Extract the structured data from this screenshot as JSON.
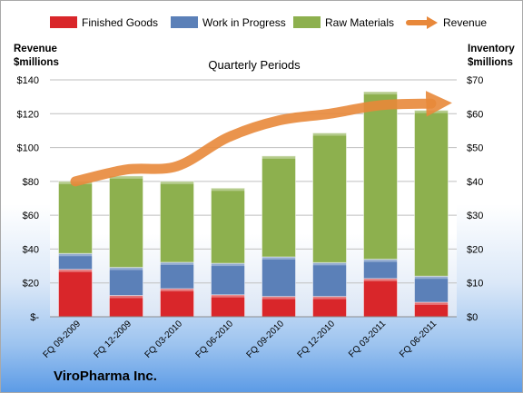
{
  "chart_data": {
    "type": "bar",
    "subtype": "stacked bar with line overlay",
    "title": "Quarterly Periods",
    "company": "ViroPharma Inc.",
    "left_axis_label": [
      "Revenue",
      "$millions"
    ],
    "right_axis_label": [
      "Inventory",
      "$millions"
    ],
    "categories": [
      "FQ 09-2009",
      "FQ 12-2009",
      "FQ 03-2010",
      "FQ 06-2010",
      "FQ 09-2010",
      "FQ 12-2010",
      "FQ 03-2011",
      "FQ 06-2011"
    ],
    "left_ticks": [
      "$-",
      "$20",
      "$40",
      "$60",
      "$80",
      "$100",
      "$120",
      "$140"
    ],
    "right_ticks": [
      "$0",
      "$10",
      "$20",
      "$30",
      "$40",
      "$50",
      "$60",
      "$70"
    ],
    "left_ylim": [
      0,
      140
    ],
    "right_ylim": [
      0,
      70
    ],
    "legend_position": "top",
    "series": [
      {
        "name": "Finished Goods",
        "axis": "right",
        "color": "#d9262a",
        "values": [
          14,
          6.3,
          8.3,
          6.5,
          6,
          6,
          11.3,
          4.3
        ]
      },
      {
        "name": "Work in Progress",
        "axis": "right",
        "color": "#5b80b8",
        "values": [
          4.7,
          8.3,
          7.8,
          9.3,
          11.7,
          10,
          5.7,
          7.7
        ]
      },
      {
        "name": "Raw Materials",
        "axis": "right",
        "color": "#8db04e",
        "values": [
          21.3,
          27,
          23.9,
          22.2,
          29.8,
          38.3,
          49.5,
          49
        ]
      },
      {
        "name": "Revenue",
        "axis": "left",
        "color": "#e8883a",
        "type": "line",
        "values": [
          80,
          87,
          89,
          106,
          116,
          120,
          125,
          126
        ]
      }
    ]
  }
}
